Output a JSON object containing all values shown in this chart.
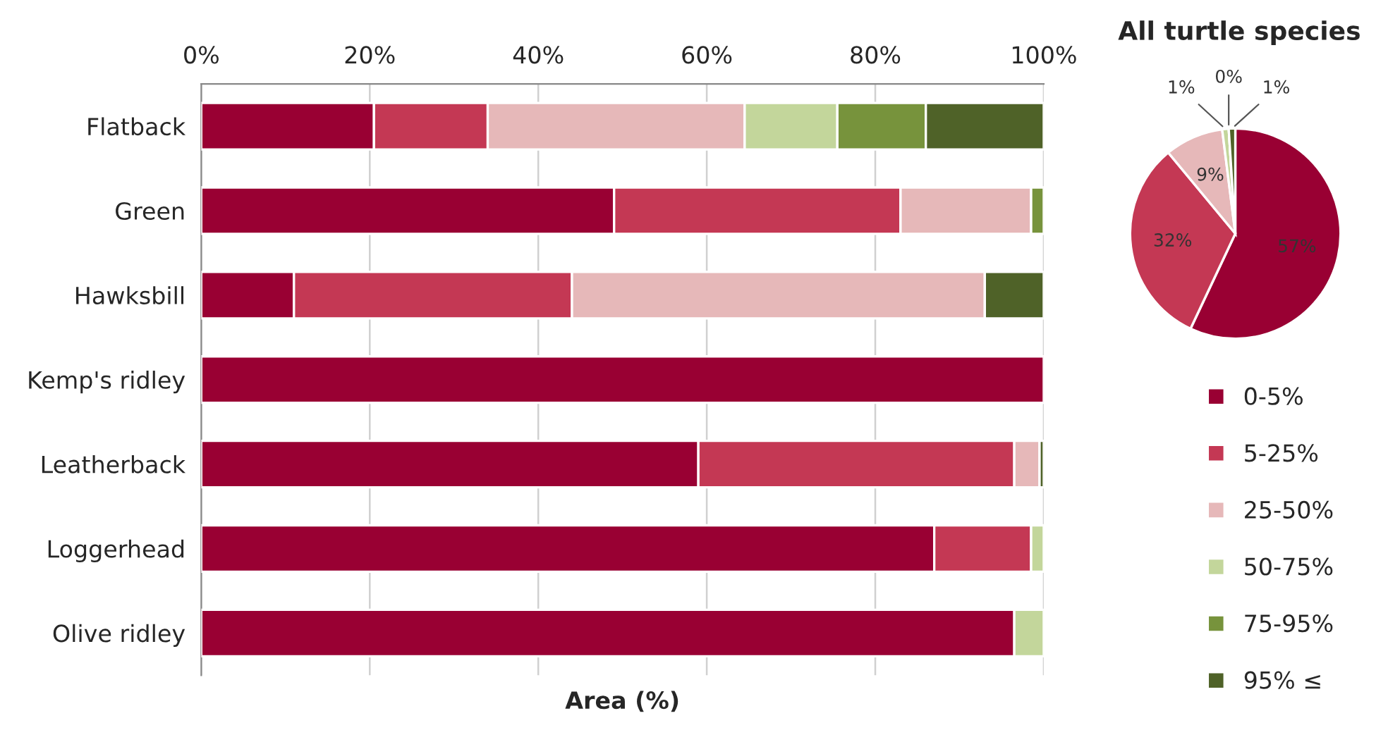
{
  "chart_data": [
    {
      "type": "bar",
      "orientation": "horizontal",
      "stacked": true,
      "xlabel": "Area (%)",
      "categories": [
        "Flatback",
        "Green",
        "Hawksbill",
        "Kemp's ridley",
        "Leatherback",
        "Loggerhead",
        "Olive ridley"
      ],
      "series": [
        {
          "name": "0-5%",
          "color": "#990033",
          "values": [
            20.5,
            49,
            11,
            100,
            59,
            87,
            96.5
          ]
        },
        {
          "name": "5-25%",
          "color": "#c43854",
          "values": [
            13.5,
            34,
            33,
            0,
            37.5,
            11.5,
            0
          ]
        },
        {
          "name": "25-50%",
          "color": "#e6b8b9",
          "values": [
            30.5,
            15.5,
            49,
            0,
            3,
            0,
            0
          ]
        },
        {
          "name": "50-75%",
          "color": "#c3d69b",
          "values": [
            11,
            0,
            0,
            0,
            0,
            1.5,
            3.5
          ]
        },
        {
          "name": "75-95%",
          "color": "#77933c",
          "values": [
            10.5,
            1.5,
            0,
            0,
            0,
            0,
            0
          ]
        },
        {
          "name": "95% ≤",
          "color": "#4f6228",
          "values": [
            14,
            0,
            7,
            0,
            0.5,
            0,
            0
          ]
        }
      ],
      "xlim": [
        0,
        100
      ],
      "xticks": [
        {
          "value": 0,
          "label": "0%"
        },
        {
          "value": 20,
          "label": "20%"
        },
        {
          "value": 40,
          "label": "40%"
        },
        {
          "value": 60,
          "label": "60%"
        },
        {
          "value": 80,
          "label": "80%"
        },
        {
          "value": 100,
          "label": "100%"
        }
      ],
      "grid": "x",
      "legend": "right"
    },
    {
      "type": "pie",
      "title": "All turtle species",
      "categories": [
        null,
        null,
        null,
        null,
        null,
        null
      ],
      "values": [
        57,
        32,
        9,
        1,
        0,
        1
      ],
      "colors": [
        "#990033",
        "#c43854",
        "#e6b8b9",
        "#c3d69b",
        "#77933c",
        "#4f6228"
      ],
      "value_labels": [
        "57%",
        "32%",
        "9%",
        "1%",
        "0%",
        "1%"
      ]
    }
  ]
}
